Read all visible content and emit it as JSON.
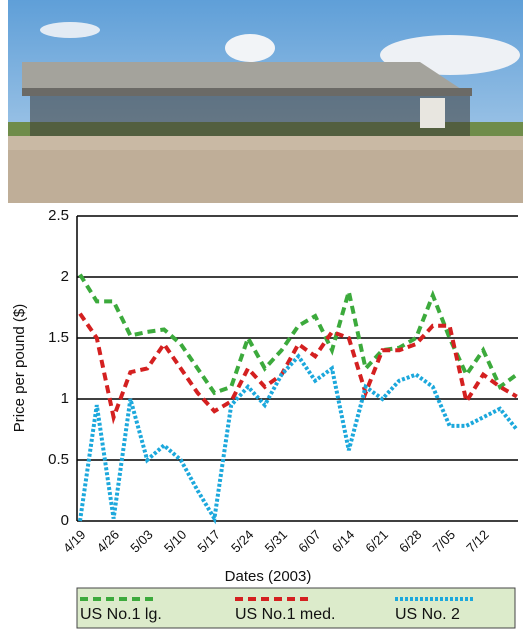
{
  "chart_data": {
    "type": "line",
    "categories": [
      "4/19",
      null,
      "4/26",
      null,
      "5/03",
      null,
      "5/10",
      null,
      "5/17",
      null,
      "5/24",
      null,
      "5/31",
      null,
      "6/07",
      null,
      "6/14",
      null,
      "6/21",
      null,
      "6/28",
      null,
      "7/05",
      null,
      "7/12",
      null,
      null
    ],
    "series": [
      {
        "name": "US No.1 lg.",
        "color": "#3caa3c",
        "dash": "8 5",
        "values": [
          2.02,
          1.8,
          1.8,
          1.52,
          1.55,
          1.57,
          1.45,
          1.25,
          1.05,
          1.1,
          1.5,
          1.25,
          1.4,
          1.6,
          1.68,
          1.4,
          1.88,
          1.25,
          1.4,
          1.42,
          1.5,
          1.85,
          1.5,
          1.2,
          1.4,
          1.1,
          1.2
        ]
      },
      {
        "name": "US No.1 med.",
        "color": "#d42020",
        "dash": "8 5",
        "values": [
          1.7,
          1.5,
          0.85,
          1.22,
          1.25,
          1.45,
          1.25,
          1.05,
          0.9,
          0.98,
          1.25,
          1.1,
          1.2,
          1.45,
          1.35,
          1.55,
          1.5,
          1.05,
          1.4,
          1.4,
          1.45,
          1.6,
          1.6,
          0.98,
          1.2,
          1.1,
          1.02
        ]
      },
      {
        "name": "US No. 2",
        "color": "#1ca8dc",
        "dash": "3 2",
        "values": [
          0,
          0.95,
          0.02,
          1.0,
          0.5,
          0.62,
          0.5,
          0.25,
          0.02,
          0.95,
          1.1,
          0.95,
          1.2,
          1.35,
          1.15,
          1.25,
          0.58,
          1.1,
          1.0,
          1.15,
          1.2,
          1.1,
          0.78,
          0.78,
          0.85,
          0.92,
          0.75
        ]
      }
    ],
    "ylim": [
      0,
      2.5
    ],
    "yticks": [
      0,
      0.5,
      1,
      1.5,
      2,
      2.5
    ],
    "grid": true,
    "ylabel": "Price per pound ($)",
    "xlabel": "Dates (2003)",
    "legend": "bottom"
  }
}
